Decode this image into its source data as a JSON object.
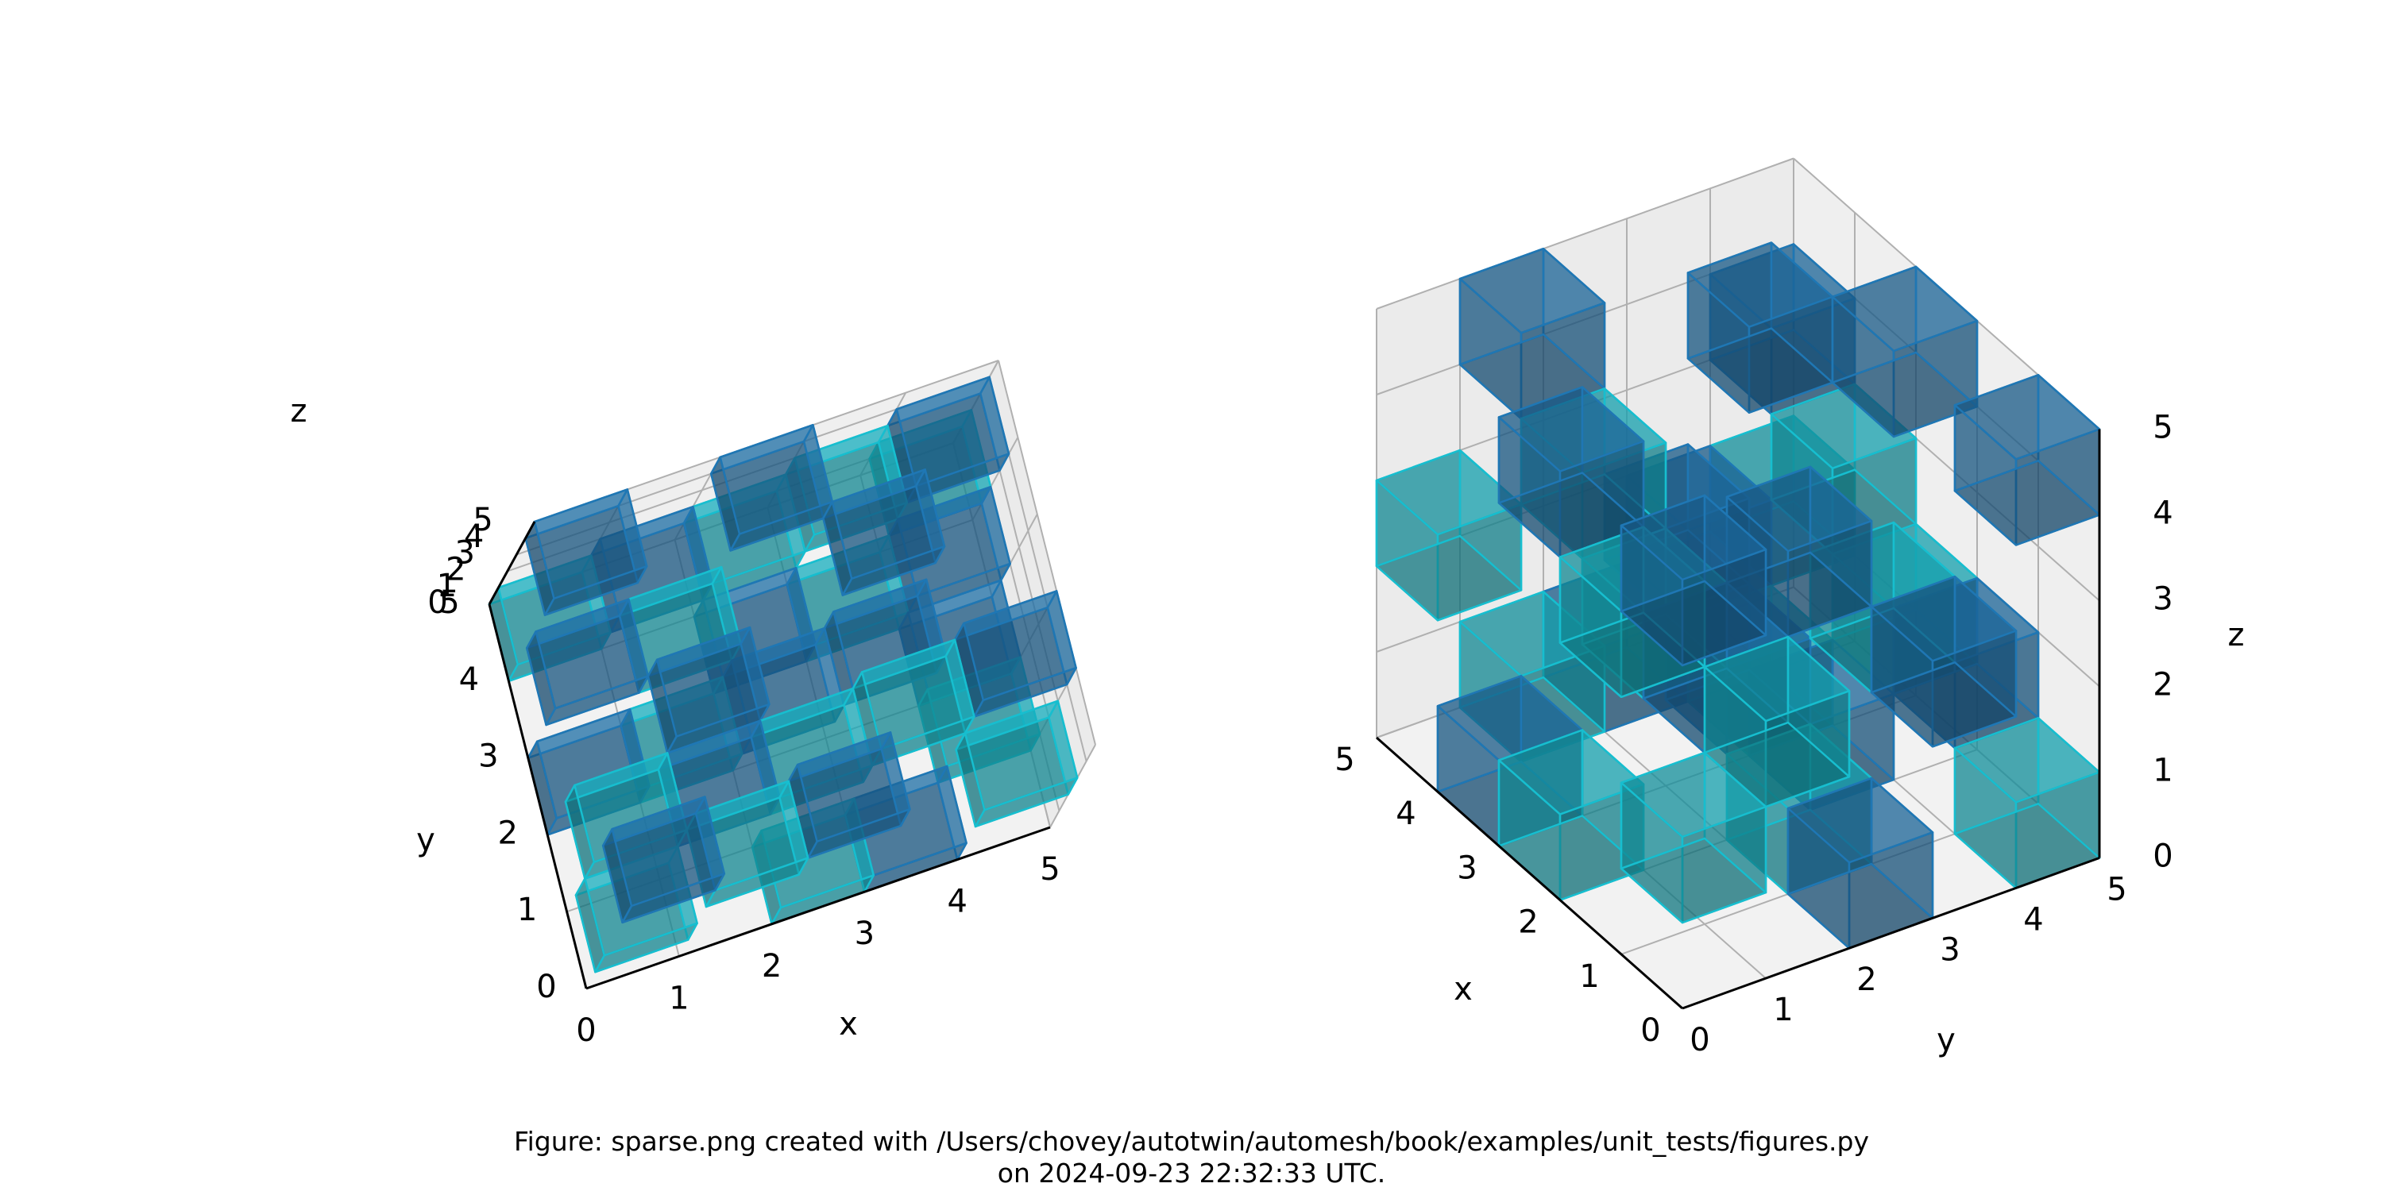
{
  "caption": {
    "line1": "Figure: sparse.png created with /Users/chovey/autotwin/automesh/book/examples/unit_tests/figures.py",
    "line2": "on 2024-09-23 22:32:33 UTC."
  },
  "colors": {
    "dark_voxel": "#1f77b4",
    "light_voxel": "#17becf",
    "pane": "#f2f2f2",
    "grid": "#b0b0b0"
  },
  "chart_data": [
    {
      "type": "voxel-3d",
      "view": "left",
      "xlabel": "x",
      "ylabel": "y",
      "zlabel": "z",
      "xlim": [
        0,
        5
      ],
      "ylim": [
        0,
        5
      ],
      "zlim": [
        0,
        5
      ],
      "x_ticks": [
        "0",
        "1",
        "2",
        "3",
        "4",
        "5"
      ],
      "y_ticks": [
        "0",
        "1",
        "2",
        "3",
        "4",
        "5"
      ],
      "z_ticks": [
        "0",
        "1",
        "2",
        "3",
        "4",
        "5"
      ],
      "grid": true,
      "series": [
        {
          "color": "#1f77b4",
          "voxels": [
            [
              0,
              0,
              4
            ],
            [
              2,
              0,
              4
            ],
            [
              4,
              1,
              4
            ],
            [
              1,
              2,
              3
            ],
            [
              3,
              3,
              4
            ],
            [
              0,
              4,
              4
            ],
            [
              2,
              4,
              4
            ],
            [
              4,
              4,
              3
            ],
            [
              1,
              1,
              2
            ],
            [
              3,
              2,
              2
            ],
            [
              0,
              3,
              2
            ],
            [
              2,
              2,
              1
            ],
            [
              4,
              3,
              1
            ],
            [
              1,
              4,
              1
            ],
            [
              3,
              0,
              0
            ],
            [
              0,
              2,
              0
            ],
            [
              2,
              3,
              0
            ],
            [
              4,
              2,
              0
            ]
          ]
        },
        {
          "color": "#17becf",
          "voxels": [
            [
              1,
              0,
              3
            ],
            [
              3,
              1,
              3
            ],
            [
              0,
              1,
              2
            ],
            [
              2,
              1,
              2
            ],
            [
              4,
              0,
              2
            ],
            [
              1,
              3,
              2
            ],
            [
              3,
              4,
              2
            ],
            [
              0,
              0,
              1
            ],
            [
              2,
              0,
              0
            ],
            [
              1,
              2,
              0
            ],
            [
              3,
              3,
              0
            ],
            [
              4,
              4,
              1
            ],
            [
              0,
              4,
              0
            ],
            [
              2,
              4,
              1
            ],
            [
              4,
              1,
              0
            ]
          ]
        }
      ]
    },
    {
      "type": "voxel-3d",
      "view": "right",
      "xlabel": "x",
      "ylabel": "y",
      "zlabel": "z",
      "xlim": [
        0,
        5
      ],
      "ylim": [
        0,
        5
      ],
      "zlim": [
        0,
        5
      ],
      "x_ticks": [
        "0",
        "1",
        "2",
        "3",
        "4",
        "5"
      ],
      "y_ticks": [
        "0",
        "1",
        "2",
        "3",
        "4",
        "5"
      ],
      "z_ticks": [
        "0",
        "1",
        "2",
        "3",
        "4",
        "5"
      ],
      "grid": true,
      "series": [
        {
          "color": "#1f77b4",
          "voxels": [
            [
              0,
              0,
              4
            ],
            [
              2,
              0,
              4
            ],
            [
              4,
              1,
              4
            ],
            [
              1,
              2,
              3
            ],
            [
              3,
              3,
              4
            ],
            [
              0,
              4,
              4
            ],
            [
              2,
              4,
              4
            ],
            [
              4,
              4,
              3
            ],
            [
              1,
              1,
              2
            ],
            [
              3,
              2,
              2
            ],
            [
              0,
              3,
              2
            ],
            [
              2,
              2,
              1
            ],
            [
              4,
              3,
              1
            ],
            [
              1,
              4,
              1
            ],
            [
              3,
              0,
              0
            ],
            [
              0,
              2,
              0
            ],
            [
              2,
              3,
              0
            ],
            [
              4,
              2,
              0
            ]
          ]
        },
        {
          "color": "#17becf",
          "voxels": [
            [
              1,
              0,
              3
            ],
            [
              3,
              1,
              3
            ],
            [
              0,
              1,
              2
            ],
            [
              2,
              1,
              2
            ],
            [
              4,
              0,
              2
            ],
            [
              1,
              3,
              2
            ],
            [
              3,
              4,
              2
            ],
            [
              0,
              0,
              1
            ],
            [
              2,
              0,
              0
            ],
            [
              1,
              2,
              0
            ],
            [
              3,
              3,
              0
            ],
            [
              4,
              4,
              1
            ],
            [
              0,
              4,
              0
            ],
            [
              2,
              4,
              1
            ],
            [
              4,
              1,
              0
            ]
          ]
        }
      ]
    }
  ]
}
